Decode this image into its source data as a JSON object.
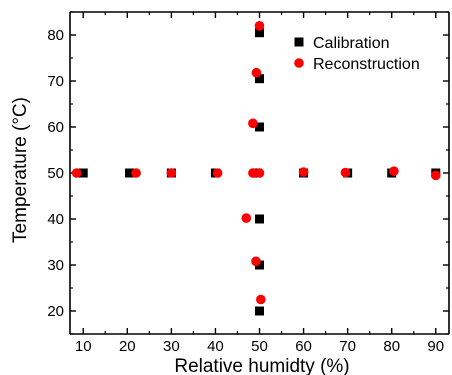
{
  "chart_data": {
    "type": "scatter",
    "title": "",
    "xlabel": "Relative humidty (%)",
    "ylabel": "Temperature (°C)",
    "xlim": [
      7,
      93
    ],
    "ylim": [
      15,
      85
    ],
    "xticks": [
      10,
      20,
      30,
      40,
      50,
      60,
      70,
      80,
      90
    ],
    "yticks": [
      20,
      30,
      40,
      50,
      60,
      70,
      80
    ],
    "grid": false,
    "legend_position": "top-right",
    "series": [
      {
        "name": "Calibration",
        "marker": "square",
        "color": "#000000",
        "points": [
          [
            10,
            50
          ],
          [
            20.5,
            50
          ],
          [
            30,
            50
          ],
          [
            40,
            50
          ],
          [
            49.5,
            50
          ],
          [
            60,
            50
          ],
          [
            70,
            50
          ],
          [
            80,
            50
          ],
          [
            90,
            50
          ],
          [
            50,
            20
          ],
          [
            50,
            30
          ],
          [
            50,
            40
          ],
          [
            50,
            60
          ],
          [
            50,
            70.5
          ],
          [
            50,
            80.5
          ]
        ]
      },
      {
        "name": "Reconstruction",
        "marker": "circle",
        "color": "#ff0000",
        "points": [
          [
            8.5,
            50
          ],
          [
            22,
            50
          ],
          [
            30,
            50
          ],
          [
            40.5,
            50
          ],
          [
            48.5,
            50
          ],
          [
            50,
            50
          ],
          [
            60,
            50.2
          ],
          [
            69.5,
            50.1
          ],
          [
            80.5,
            50.4
          ],
          [
            90,
            49.5
          ],
          [
            50.3,
            22.5
          ],
          [
            49.2,
            30.8
          ],
          [
            47,
            40.2
          ],
          [
            48.5,
            60.8
          ],
          [
            49.3,
            71.8
          ],
          [
            50,
            82
          ]
        ]
      }
    ]
  }
}
